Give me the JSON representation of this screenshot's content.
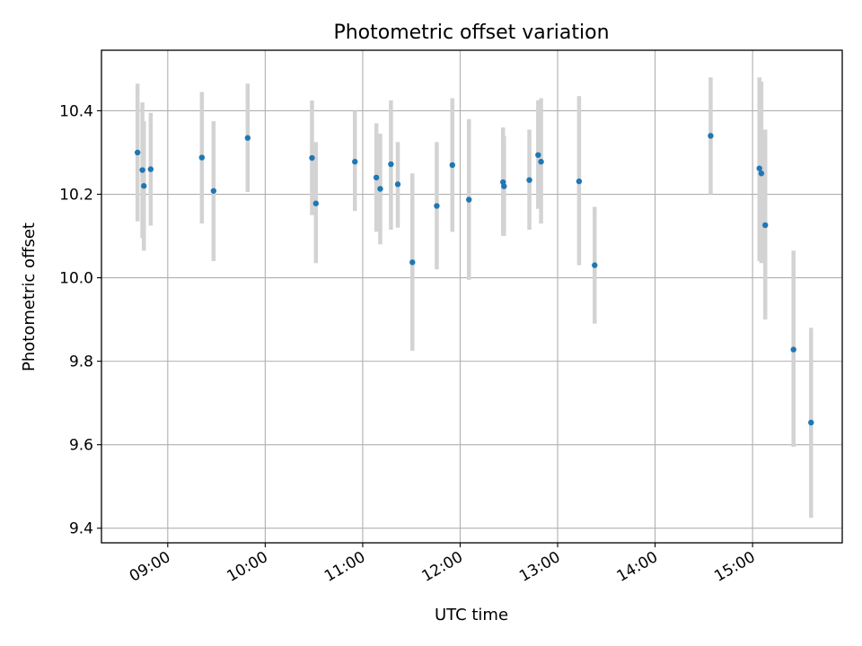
{
  "chart_data": {
    "type": "scatter",
    "title": "Photometric offset variation",
    "xlabel": "UTC time",
    "ylabel": "Photometric offset",
    "grid": true,
    "xlim": [
      8.32,
      15.92
    ],
    "ylim": [
      9.365,
      10.545
    ],
    "x_ticks": [
      9,
      10,
      11,
      12,
      13,
      14,
      15
    ],
    "x_tick_labels": [
      "09:00",
      "10:00",
      "11:00",
      "12:00",
      "13:00",
      "14:00",
      "15:00"
    ],
    "y_ticks": [
      9.4,
      9.6,
      9.8,
      10.0,
      10.2,
      10.4
    ],
    "y_tick_labels": [
      "9.4",
      "9.6",
      "9.8",
      "10.0",
      "10.2",
      "10.4"
    ],
    "marker_color": "#1f77b4",
    "errorbar_color": "#d3d3d3",
    "series": [
      {
        "name": "Photometric offset",
        "points": [
          {
            "x": 8.69,
            "y": 10.3,
            "lo": 10.135,
            "hi": 10.465
          },
          {
            "x": 8.74,
            "y": 10.258,
            "lo": 10.095,
            "hi": 10.42
          },
          {
            "x": 8.755,
            "y": 10.22,
            "lo": 10.065,
            "hi": 10.375
          },
          {
            "x": 8.825,
            "y": 10.26,
            "lo": 10.125,
            "hi": 10.395
          },
          {
            "x": 9.35,
            "y": 10.288,
            "lo": 10.13,
            "hi": 10.445
          },
          {
            "x": 9.47,
            "y": 10.208,
            "lo": 10.04,
            "hi": 10.375
          },
          {
            "x": 9.82,
            "y": 10.335,
            "lo": 10.205,
            "hi": 10.465
          },
          {
            "x": 10.48,
            "y": 10.287,
            "lo": 10.15,
            "hi": 10.425
          },
          {
            "x": 10.52,
            "y": 10.178,
            "lo": 10.035,
            "hi": 10.325
          },
          {
            "x": 10.92,
            "y": 10.278,
            "lo": 10.16,
            "hi": 10.4
          },
          {
            "x": 11.14,
            "y": 10.24,
            "lo": 10.11,
            "hi": 10.37
          },
          {
            "x": 11.18,
            "y": 10.213,
            "lo": 10.08,
            "hi": 10.345
          },
          {
            "x": 11.29,
            "y": 10.272,
            "lo": 10.115,
            "hi": 10.425
          },
          {
            "x": 11.36,
            "y": 10.224,
            "lo": 10.12,
            "hi": 10.325
          },
          {
            "x": 11.51,
            "y": 10.037,
            "lo": 9.825,
            "hi": 10.25
          },
          {
            "x": 11.76,
            "y": 10.172,
            "lo": 10.02,
            "hi": 10.325
          },
          {
            "x": 11.92,
            "y": 10.27,
            "lo": 10.11,
            "hi": 10.43
          },
          {
            "x": 12.09,
            "y": 10.187,
            "lo": 9.995,
            "hi": 10.38
          },
          {
            "x": 12.44,
            "y": 10.229,
            "lo": 10.1,
            "hi": 10.36
          },
          {
            "x": 12.45,
            "y": 10.219,
            "lo": 10.1,
            "hi": 10.34
          },
          {
            "x": 12.71,
            "y": 10.234,
            "lo": 10.115,
            "hi": 10.355
          },
          {
            "x": 12.8,
            "y": 10.294,
            "lo": 10.165,
            "hi": 10.425
          },
          {
            "x": 12.83,
            "y": 10.278,
            "lo": 10.13,
            "hi": 10.43
          },
          {
            "x": 13.22,
            "y": 10.231,
            "lo": 10.03,
            "hi": 10.435
          },
          {
            "x": 13.38,
            "y": 10.03,
            "lo": 9.89,
            "hi": 10.17
          },
          {
            "x": 14.57,
            "y": 10.34,
            "lo": 10.2,
            "hi": 10.48
          },
          {
            "x": 15.07,
            "y": 10.262,
            "lo": 10.04,
            "hi": 10.48
          },
          {
            "x": 15.09,
            "y": 10.25,
            "lo": 10.035,
            "hi": 10.47
          },
          {
            "x": 15.13,
            "y": 10.126,
            "lo": 9.9,
            "hi": 10.355
          },
          {
            "x": 15.42,
            "y": 9.828,
            "lo": 9.595,
            "hi": 10.065
          },
          {
            "x": 15.6,
            "y": 9.653,
            "lo": 9.425,
            "hi": 9.88
          }
        ]
      }
    ]
  }
}
